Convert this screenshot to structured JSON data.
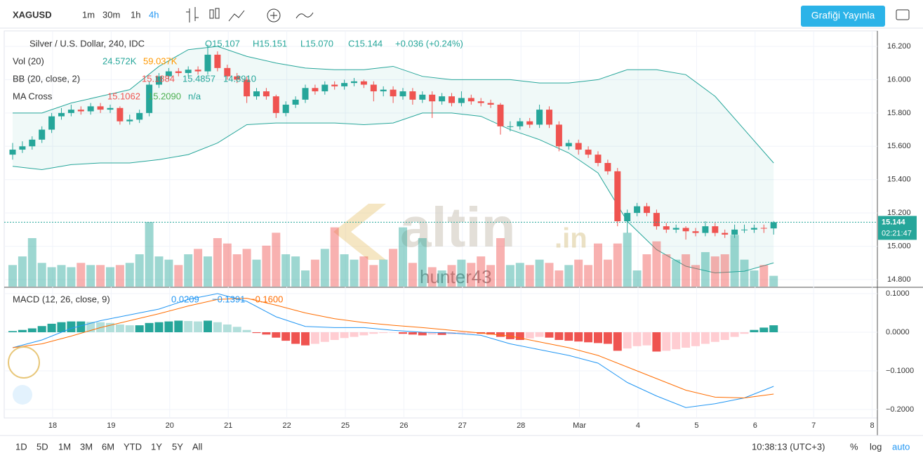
{
  "toolbar": {
    "symbol": "XAGUSD",
    "intervals": [
      "1m",
      "30m",
      "1h",
      "4h"
    ],
    "publish": "Grafiği Yayınla"
  },
  "legend": {
    "title": "Silver / U.S. Dollar, 240, IDC",
    "open": "O15.107",
    "high": "H15.151",
    "low": "L15.070",
    "close": "C15.144",
    "change": "+0.036 (+0.24%)",
    "vol": {
      "name": "Vol (20)",
      "values": [
        "24.572K",
        "59.037K"
      ]
    },
    "bb": {
      "name": "BB (20, close, 2)",
      "values": [
        "15.1884",
        "15.4857",
        "14.8910"
      ]
    },
    "ma": {
      "name": "MA Cross",
      "values": [
        "15.1062",
        "15.2090",
        "n/a"
      ]
    },
    "macd": {
      "name": "MACD (12, 26, close, 9)",
      "values": [
        "0.0209",
        "−0.1391",
        "−0.1600"
      ]
    }
  },
  "watermark": {
    "brand": "altin",
    "tld": ".in",
    "user": "hunter43"
  },
  "price_label": "15.144",
  "countdown": "02:21:47",
  "bottom": {
    "ranges": [
      "1D",
      "5D",
      "1M",
      "3M",
      "6M",
      "YTD",
      "1Y",
      "5Y",
      "All"
    ],
    "clock": "10:38:13 (UTC+3)",
    "percent": "%",
    "log": "log",
    "auto": "auto"
  },
  "chart_data": {
    "type": "candlestick",
    "xticks": [
      "18",
      "19",
      "20",
      "21",
      "22",
      "25",
      "26",
      "27",
      "28",
      "Mar",
      "4",
      "5",
      "6",
      "7",
      "8"
    ],
    "ylim": [
      14.8,
      16.2
    ],
    "yticks": [
      {
        "value": 16.2,
        "label": "16.200"
      },
      {
        "value": 16.0,
        "label": "16.000"
      },
      {
        "value": 15.8,
        "label": "15.800"
      },
      {
        "value": 15.6,
        "label": "15.600"
      },
      {
        "value": 15.4,
        "label": "15.400"
      },
      {
        "value": 15.2,
        "label": "15.200"
      },
      {
        "value": 15.0,
        "label": "15.000"
      },
      {
        "value": 14.8,
        "label": "14.800"
      }
    ],
    "macd_ticks": [
      {
        "value": 0.1,
        "label": "0.1000"
      },
      {
        "value": 0,
        "label": "0.0000"
      },
      {
        "value": -0.1,
        "label": "−0.1000"
      },
      {
        "value": -0.2,
        "label": "−0.2000"
      }
    ],
    "candles": [
      [
        15.55,
        15.62,
        15.52,
        15.58
      ],
      [
        15.58,
        15.63,
        15.56,
        15.6
      ],
      [
        15.6,
        15.66,
        15.58,
        15.64
      ],
      [
        15.64,
        15.72,
        15.62,
        15.7
      ],
      [
        15.7,
        15.8,
        15.68,
        15.78
      ],
      [
        15.78,
        15.83,
        15.76,
        15.8
      ],
      [
        15.8,
        15.85,
        15.78,
        15.82
      ],
      [
        15.82,
        15.84,
        15.79,
        15.81
      ],
      [
        15.81,
        15.86,
        15.79,
        15.84
      ],
      [
        15.84,
        15.86,
        15.8,
        15.82
      ],
      [
        15.82,
        15.85,
        15.8,
        15.83
      ],
      [
        15.83,
        15.84,
        15.73,
        15.75
      ],
      [
        15.75,
        15.79,
        15.73,
        15.76
      ],
      [
        15.76,
        15.82,
        15.74,
        15.8
      ],
      [
        15.8,
        15.99,
        15.78,
        15.97
      ],
      [
        15.97,
        16.04,
        15.95,
        16.02
      ],
      [
        16.02,
        16.07,
        16.0,
        16.05
      ],
      [
        16.05,
        16.07,
        16.02,
        16.04
      ],
      [
        16.04,
        16.08,
        16.02,
        16.06
      ],
      [
        16.06,
        16.08,
        16.03,
        16.05
      ],
      [
        16.05,
        16.21,
        16.03,
        16.15
      ],
      [
        16.15,
        16.17,
        16.05,
        16.07
      ],
      [
        16.07,
        16.09,
        16.0,
        16.02
      ],
      [
        16.02,
        16.04,
        15.98,
        16.0
      ],
      [
        16.0,
        16.02,
        15.86,
        15.9
      ],
      [
        15.9,
        15.95,
        15.88,
        15.93
      ],
      [
        15.93,
        15.95,
        15.88,
        15.9
      ],
      [
        15.9,
        15.91,
        15.77,
        15.8
      ],
      [
        15.8,
        15.87,
        15.78,
        15.85
      ],
      [
        15.85,
        15.9,
        15.83,
        15.88
      ],
      [
        15.88,
        15.97,
        15.86,
        15.95
      ],
      [
        15.95,
        15.97,
        15.91,
        15.93
      ],
      [
        15.93,
        15.99,
        15.91,
        15.97
      ],
      [
        15.97,
        15.99,
        15.94,
        15.96
      ],
      [
        15.96,
        16.0,
        15.94,
        15.98
      ],
      [
        15.98,
        16.01,
        15.96,
        15.99
      ],
      [
        15.99,
        16.0,
        15.95,
        15.97
      ],
      [
        15.97,
        15.99,
        15.87,
        15.93
      ],
      [
        15.93,
        15.96,
        15.9,
        15.94
      ],
      [
        15.94,
        15.96,
        15.86,
        15.9
      ],
      [
        15.9,
        15.95,
        15.88,
        15.93
      ],
      [
        15.93,
        15.95,
        15.85,
        15.88
      ],
      [
        15.88,
        15.93,
        15.86,
        15.91
      ],
      [
        15.91,
        15.93,
        15.77,
        15.87
      ],
      [
        15.87,
        15.92,
        15.85,
        15.9
      ],
      [
        15.9,
        15.92,
        15.84,
        15.86
      ],
      [
        15.86,
        15.93,
        15.84,
        15.89
      ],
      [
        15.89,
        15.91,
        15.85,
        15.87
      ],
      [
        15.87,
        15.89,
        15.84,
        15.86
      ],
      [
        15.86,
        15.88,
        15.83,
        15.85
      ],
      [
        15.85,
        15.86,
        15.67,
        15.72
      ],
      [
        15.72,
        15.75,
        15.69,
        15.72
      ],
      [
        15.72,
        15.77,
        15.7,
        15.75
      ],
      [
        15.75,
        15.77,
        15.71,
        15.73
      ],
      [
        15.73,
        15.85,
        15.71,
        15.82
      ],
      [
        15.82,
        15.84,
        15.71,
        15.73
      ],
      [
        15.73,
        15.75,
        15.57,
        15.6
      ],
      [
        15.6,
        15.64,
        15.58,
        15.62
      ],
      [
        15.62,
        15.64,
        15.55,
        15.58
      ],
      [
        15.58,
        15.6,
        15.53,
        15.55
      ],
      [
        15.55,
        15.57,
        15.48,
        15.5
      ],
      [
        15.5,
        15.52,
        15.43,
        15.45
      ],
      [
        15.45,
        15.47,
        15.12,
        15.15
      ],
      [
        15.15,
        15.22,
        15.08,
        15.2
      ],
      [
        15.2,
        15.26,
        15.18,
        15.24
      ],
      [
        15.24,
        15.26,
        15.18,
        15.2
      ],
      [
        15.2,
        15.22,
        15.1,
        15.12
      ],
      [
        15.12,
        15.14,
        15.08,
        15.1
      ],
      [
        15.1,
        15.13,
        15.08,
        15.11
      ],
      [
        15.11,
        15.12,
        15.04,
        15.09
      ],
      [
        15.09,
        15.11,
        15.06,
        15.08
      ],
      [
        15.08,
        15.15,
        15.06,
        15.12
      ],
      [
        15.12,
        15.14,
        15.06,
        15.08
      ],
      [
        15.08,
        15.1,
        15.05,
        15.07
      ],
      [
        15.07,
        15.13,
        15.05,
        15.1
      ],
      [
        15.1,
        15.13,
        15.08,
        15.1
      ],
      [
        15.1,
        15.13,
        15.08,
        15.11
      ],
      [
        15.11,
        15.13,
        15.08,
        15.107
      ],
      [
        15.107,
        15.151,
        15.07,
        15.144
      ]
    ],
    "volumes": [
      20,
      28,
      45,
      22,
      18,
      20,
      18,
      22,
      20,
      20,
      18,
      20,
      22,
      30,
      60,
      28,
      25,
      20,
      30,
      35,
      28,
      45,
      40,
      30,
      35,
      25,
      38,
      50,
      30,
      28,
      15,
      25,
      35,
      55,
      30,
      25,
      28,
      20,
      25,
      35,
      55,
      22,
      45,
      18,
      15,
      20,
      25,
      22,
      28,
      20,
      45,
      20,
      22,
      20,
      25,
      22,
      15,
      20,
      25,
      20,
      40,
      25,
      40,
      50,
      15,
      30,
      42,
      30,
      25,
      30,
      20,
      32,
      28,
      30,
      48,
      25,
      15,
      20,
      10
    ],
    "macd_hist": [
      0.003,
      0.006,
      0.01,
      0.016,
      0.022,
      0.026,
      0.028,
      0.028,
      0.027,
      0.026,
      0.024,
      0.02,
      0.018,
      0.018,
      0.024,
      0.026,
      0.028,
      0.03,
      0.029,
      0.028,
      0.03,
      0.026,
      0.02,
      0.014,
      0.006,
      -0.002,
      -0.006,
      -0.014,
      -0.022,
      -0.03,
      -0.034,
      -0.03,
      -0.025,
      -0.02,
      -0.015,
      -0.012,
      -0.008,
      -0.004,
      -0.002,
      -0.001,
      -0.004,
      -0.006,
      -0.008,
      -0.006,
      -0.007,
      -0.005,
      -0.004,
      -0.003,
      -0.004,
      -0.006,
      -0.012,
      -0.018,
      -0.02,
      -0.016,
      -0.012,
      -0.014,
      -0.02,
      -0.022,
      -0.024,
      -0.026,
      -0.028,
      -0.03,
      -0.048,
      -0.042,
      -0.036,
      -0.034,
      -0.05,
      -0.048,
      -0.044,
      -0.04,
      -0.036,
      -0.03,
      -0.025,
      -0.02,
      -0.012,
      -0.004,
      0.006,
      0.012,
      0.018
    ],
    "line_index": [
      0,
      3,
      6,
      9,
      12,
      15,
      18,
      21,
      24,
      27,
      30,
      33,
      36,
      39,
      42,
      45,
      48,
      51,
      54,
      57,
      60,
      63,
      66,
      69,
      72,
      75,
      78
    ],
    "bb_upper": [
      15.8,
      15.8,
      15.86,
      15.9,
      15.94,
      16.08,
      16.18,
      16.2,
      16.14,
      16.1,
      16.07,
      16.06,
      16.06,
      16.08,
      16.02,
      16.0,
      16.0,
      16.0,
      15.98,
      15.98,
      16.0,
      16.06,
      16.06,
      16.03,
      15.9,
      15.7,
      15.5
    ],
    "bb_lower": [
      15.48,
      15.46,
      15.49,
      15.5,
      15.5,
      15.52,
      15.55,
      15.62,
      15.73,
      15.74,
      15.74,
      15.74,
      15.73,
      15.74,
      15.8,
      15.8,
      15.78,
      15.7,
      15.64,
      15.56,
      15.44,
      15.15,
      14.98,
      14.88,
      14.84,
      14.85,
      14.9
    ],
    "macd_line": [
      -0.04,
      -0.02,
      0.01,
      0.03,
      0.045,
      0.06,
      0.085,
      0.1,
      0.08,
      0.04,
      0.015,
      0.012,
      0.012,
      0.005,
      0.0,
      -0.002,
      -0.008,
      -0.03,
      -0.045,
      -0.06,
      -0.08,
      -0.13,
      -0.165,
      -0.195,
      -0.185,
      -0.17,
      -0.14
    ],
    "signal_line": [
      -0.04,
      -0.03,
      -0.01,
      0.012,
      0.03,
      0.048,
      0.068,
      0.085,
      0.088,
      0.07,
      0.05,
      0.035,
      0.025,
      0.018,
      0.012,
      0.005,
      -0.002,
      -0.01,
      -0.025,
      -0.04,
      -0.06,
      -0.09,
      -0.12,
      -0.15,
      -0.168,
      -0.17,
      -0.16
    ],
    "last_price": 15.144
  }
}
